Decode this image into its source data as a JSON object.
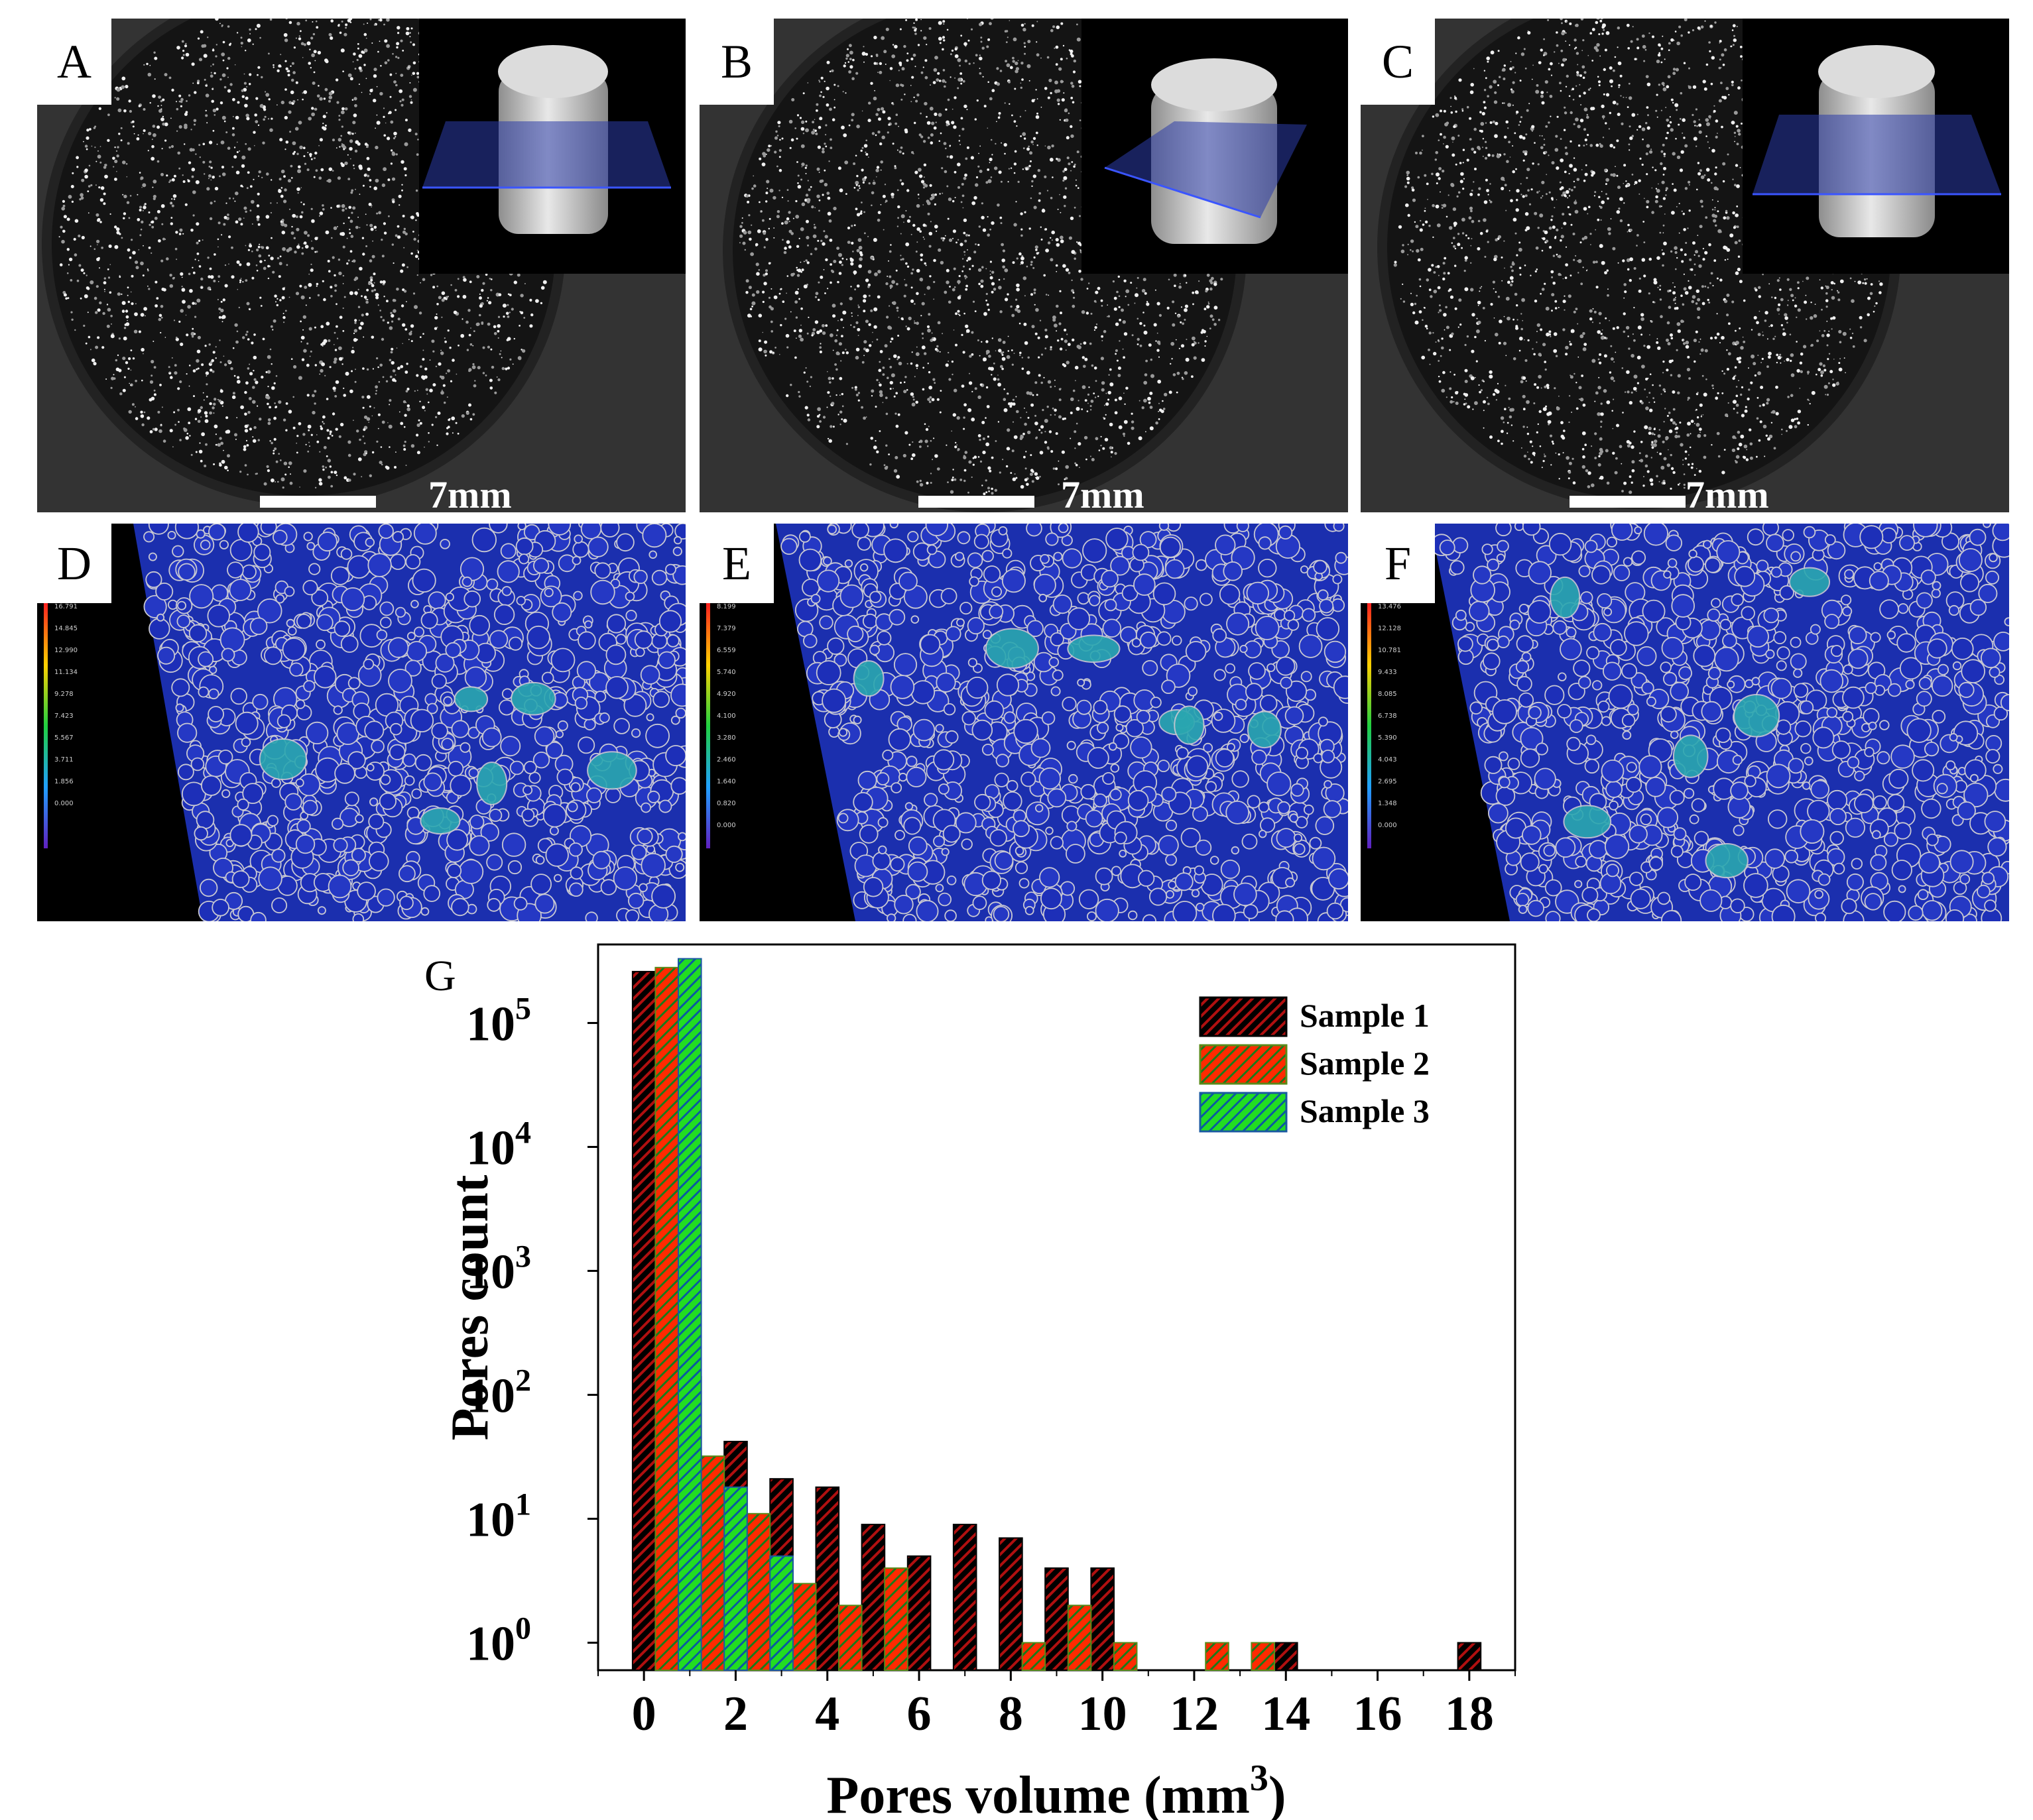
{
  "panels": {
    "top": [
      {
        "letter": "A",
        "scale_label": "7mm"
      },
      {
        "letter": "B",
        "scale_label": "7mm"
      },
      {
        "letter": "C",
        "scale_label": "7mm"
      }
    ],
    "middle": [
      {
        "letter": "D",
        "colorbar_ticks": [
          "16.791",
          "14.845",
          "12.990",
          "11.134",
          "9.278",
          "7.423",
          "5.567",
          "3.711",
          "1.856",
          "0.000"
        ]
      },
      {
        "letter": "E",
        "colorbar_ticks": [
          "8.199",
          "7.379",
          "6.559",
          "5.740",
          "4.920",
          "4.100",
          "3.280",
          "2.460",
          "1.640",
          "0.820",
          "0.000"
        ]
      },
      {
        "letter": "F",
        "colorbar_ticks": [
          "13.476",
          "12.128",
          "10.781",
          "9.433",
          "8.085",
          "6.738",
          "5.390",
          "4.043",
          "2.695",
          "1.348",
          "0.000"
        ]
      }
    ],
    "bottom_letter": "G"
  },
  "colors": {
    "sample1": "#b01010",
    "sample2": "#ff2a00",
    "sample3": "#22dd22",
    "pore_blue": "#1b2fae",
    "pore_cyan": "#2aa7b0",
    "wall": "#c8c8d2"
  },
  "chart_data": {
    "type": "bar",
    "xlabel": "Pores volume (mm3)",
    "ylabel": "Pores count",
    "x_ticks": [
      0,
      2,
      4,
      6,
      8,
      10,
      12,
      14,
      16,
      18
    ],
    "xlim": [
      -1,
      19
    ],
    "y_scale": "log",
    "y_ticks": [
      "10^0",
      "10^1",
      "10^2",
      "10^3",
      "10^4",
      "10^5"
    ],
    "ylim": [
      0.6,
      430000
    ],
    "legend_position": "top-right",
    "series": [
      {
        "name": "Sample 1",
        "points": [
          [
            0,
            260000
          ],
          [
            1,
            140
          ],
          [
            2,
            42
          ],
          [
            3,
            21
          ],
          [
            4,
            18
          ],
          [
            5,
            9
          ],
          [
            6,
            5
          ],
          [
            7,
            9
          ],
          [
            8,
            7
          ],
          [
            9,
            4
          ],
          [
            10,
            4
          ],
          [
            14,
            1
          ],
          [
            18,
            1
          ]
        ]
      },
      {
        "name": "Sample 2",
        "points": [
          [
            0.5,
            280000
          ],
          [
            1.5,
            32
          ],
          [
            2.5,
            11
          ],
          [
            3.5,
            3
          ],
          [
            4.5,
            2
          ],
          [
            5.5,
            4
          ],
          [
            8.5,
            1
          ],
          [
            9.5,
            2
          ],
          [
            10.5,
            1
          ],
          [
            12.5,
            1
          ],
          [
            13.5,
            1
          ]
        ]
      },
      {
        "name": "Sample 3",
        "points": [
          [
            1,
            330000
          ],
          [
            2,
            18
          ],
          [
            3,
            5
          ]
        ]
      }
    ]
  }
}
